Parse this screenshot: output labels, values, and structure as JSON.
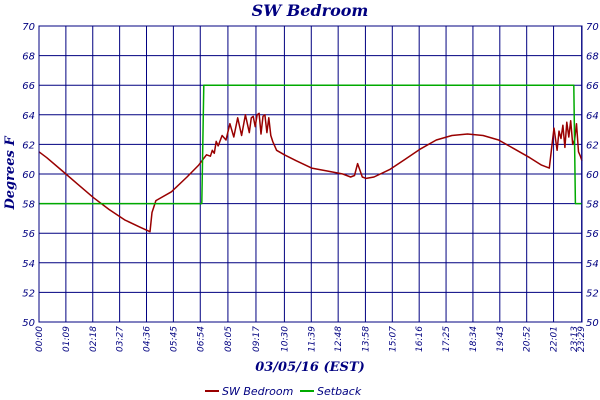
{
  "chart_data": {
    "type": "line",
    "title": "SW Bedroom",
    "xlabel": "03/05/16 (EST)",
    "ylabel": "Degrees F",
    "ylim": [
      50,
      70
    ],
    "yticks": [
      50,
      52,
      54,
      56,
      58,
      60,
      62,
      64,
      66,
      68,
      70
    ],
    "xlim": [
      0,
      1394
    ],
    "xticks": [
      {
        "label": "00:00",
        "min": 0
      },
      {
        "label": "01:09",
        "min": 69
      },
      {
        "label": "02:18",
        "min": 138
      },
      {
        "label": "03:27",
        "min": 207
      },
      {
        "label": "04:36",
        "min": 276
      },
      {
        "label": "05:45",
        "min": 345
      },
      {
        "label": "06:54",
        "min": 414
      },
      {
        "label": "08:05",
        "min": 485
      },
      {
        "label": "09:17",
        "min": 557
      },
      {
        "label": "10:30",
        "min": 630
      },
      {
        "label": "11:39",
        "min": 699
      },
      {
        "label": "12:48",
        "min": 768
      },
      {
        "label": "13:58",
        "min": 838
      },
      {
        "label": "15:07",
        "min": 907
      },
      {
        "label": "16:16",
        "min": 976
      },
      {
        "label": "17:25",
        "min": 1045
      },
      {
        "label": "18:34",
        "min": 1114
      },
      {
        "label": "19:43",
        "min": 1183
      },
      {
        "label": "20:52",
        "min": 1252
      },
      {
        "label": "22:01",
        "min": 1321
      },
      {
        "label": "23:13",
        "min": 1393
      },
      {
        "label": "23:29",
        "min": 1409
      }
    ],
    "grid": true,
    "legend_position": "bottom",
    "series": [
      {
        "name": "SW Bedroom",
        "color": "#990000",
        "x": [
          0,
          20,
          60,
          100,
          140,
          180,
          220,
          260,
          285,
          290,
          300,
          340,
          380,
          410,
          430,
          440,
          445,
          450,
          455,
          460,
          470,
          480,
          490,
          500,
          510,
          520,
          530,
          540,
          545,
          550,
          555,
          560,
          565,
          570,
          575,
          580,
          585,
          590,
          595,
          600,
          610,
          630,
          660,
          700,
          740,
          780,
          800,
          810,
          818,
          822,
          830,
          840,
          860,
          900,
          940,
          980,
          1020,
          1060,
          1100,
          1140,
          1180,
          1220,
          1260,
          1290,
          1310,
          1318,
          1322,
          1330,
          1335,
          1340,
          1345,
          1350,
          1355,
          1360,
          1365,
          1370,
          1375,
          1380,
          1385,
          1390,
          1394
        ],
        "y": [
          61.5,
          61.1,
          60.2,
          59.3,
          58.4,
          57.6,
          56.9,
          56.4,
          56.1,
          57.4,
          58.2,
          58.8,
          59.8,
          60.6,
          61.3,
          61.2,
          61.6,
          61.4,
          62.2,
          61.9,
          62.6,
          62.3,
          63.4,
          62.5,
          63.8,
          62.6,
          64.0,
          62.8,
          63.8,
          63.9,
          63.2,
          64.0,
          64.1,
          62.7,
          63.9,
          64.0,
          62.8,
          63.8,
          62.6,
          62.2,
          61.6,
          61.3,
          60.9,
          60.4,
          60.2,
          60.0,
          59.8,
          59.9,
          60.7,
          60.4,
          59.8,
          59.7,
          59.8,
          60.3,
          61.0,
          61.7,
          62.3,
          62.6,
          62.7,
          62.6,
          62.3,
          61.7,
          61.1,
          60.6,
          60.4,
          62.2,
          63.1,
          61.6,
          62.9,
          62.4,
          63.3,
          61.8,
          63.5,
          62.5,
          63.6,
          62.0,
          62.3,
          63.4,
          61.5,
          61.2,
          60.9
        ]
      },
      {
        "name": "Setback",
        "color": "#00aa00",
        "x": [
          0,
          418,
          423,
          1373,
          1377,
          1394
        ],
        "y": [
          58,
          58,
          66,
          66,
          58,
          58
        ]
      }
    ]
  }
}
